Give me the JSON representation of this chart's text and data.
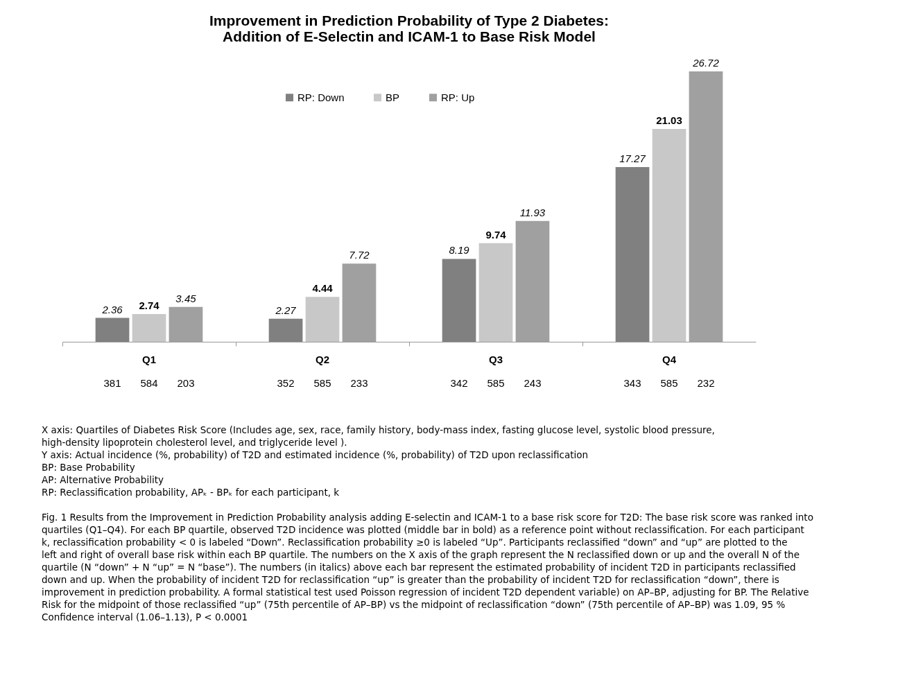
{
  "chart_data": {
    "type": "bar",
    "title": [
      "Improvement in Prediction Probability of Type 2 Diabetes:",
      "Addition of E-Selectin and ICAM-1 to Base Risk Model"
    ],
    "categories": [
      "Q1",
      "Q2",
      "Q3",
      "Q4"
    ],
    "series": [
      {
        "name": "RP: Down",
        "color": "#808080",
        "values": [
          2.36,
          2.27,
          8.19,
          17.27
        ]
      },
      {
        "name": "BP",
        "color": "#c8c8c8",
        "values": [
          2.74,
          4.44,
          9.74,
          21.03
        ]
      },
      {
        "name": "RP: Up",
        "color": "#a0a0a0",
        "values": [
          3.45,
          7.72,
          11.93,
          26.72
        ]
      }
    ],
    "data_labels": true,
    "legend": "top",
    "grid": false,
    "tick_labels": "x",
    "annotations": [
      "381",
      "584",
      "203",
      "352",
      "585",
      "233",
      "342",
      "585",
      "243",
      "343",
      "585",
      "232",
      "X axis: Quartiles of Diabetes Risk Score (Includes age, sex, race, family history, body-mass index, fasting glucose level, systolic blood pressure,",
      "high-density lipoprotein cholesterol level, and triglyceride level ).",
      "Y axis: Actual incidence (%, probability) of T2D and estimated incidence (%, probability) of T2D upon reclassification",
      "BP: Base Probability",
      "AP: Alternative Probability",
      "RP: Reclassification probability, APₖ - BPₖ for each participant, k",
      "Fig. 1 Results from the Improvement in Prediction Probability analysis adding E-selectin and ICAM-1 to a base risk score for T2D: The base risk score was ranked into quartiles (Q1–Q4). For each BP quartile, observed T2D incidence was plotted (middle bar in bold) as a reference point without reclassification. For each participant k, reclassification probability < 0 is labeled “Down”. Reclassification probability ≥0 is labeled “Up”. Participants reclassified “down” and “up” are plotted to the left and right of overall base risk within each BP quartile. The numbers on the X axis of the graph represent the N reclassified down or up and the overall N of the quartile (N “down” + N “up” = N “base”). The numbers (in italics) above each bar represent the estimated probability of incident T2D in participants reclassified down and up. When the probability of incident T2D for reclassification “up” is greater than the probability of incident T2D for reclassification “down”, there is improvement in prediction probability. A formal statistical test used Poisson regression of incident T2D dependent variable) on AP–BP, adjusting for BP. The Relative Risk for the midpoint of those reclassified “up” (75th percentile of AP–BP) vs the midpoint of reclassification “down” (75th percentile of AP–BP) was 1.09, 95 % Confidence interval (1.06–1.13), P < 0.0001"
    ]
  }
}
